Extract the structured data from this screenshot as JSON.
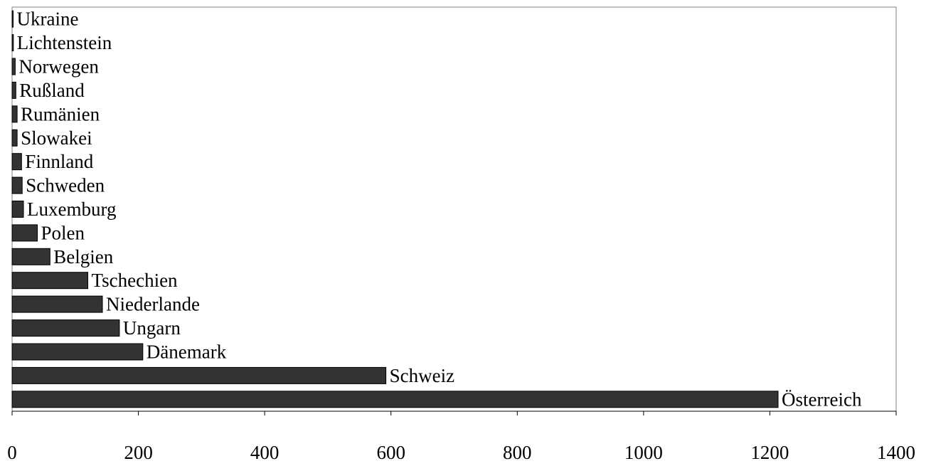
{
  "chart_data": {
    "type": "bar",
    "orientation": "horizontal",
    "categories": [
      "Ukraine",
      "Lichtenstein",
      "Norwegen",
      "Rußland",
      "Rumänien",
      "Slowakei",
      "Finnland",
      "Schweden",
      "Luxemburg",
      "Polen",
      "Belgien",
      "Tschechien",
      "Niederlande",
      "Ungarn",
      "Dänemark",
      "Schweiz",
      "Österreich"
    ],
    "values": [
      1,
      2,
      5,
      6,
      8,
      8,
      15,
      16,
      18,
      40,
      60,
      120,
      143,
      170,
      207,
      592,
      1213
    ],
    "xticks": [
      "0",
      "200",
      "400",
      "600",
      "800",
      "1000",
      "1200",
      "1400"
    ],
    "xlim": [
      0,
      1400
    ],
    "title": "",
    "xlabel": "",
    "ylabel": "",
    "grid": false,
    "colors": {
      "bar": "#333333",
      "bar_edge": "#000000",
      "frame": "#808080"
    }
  }
}
